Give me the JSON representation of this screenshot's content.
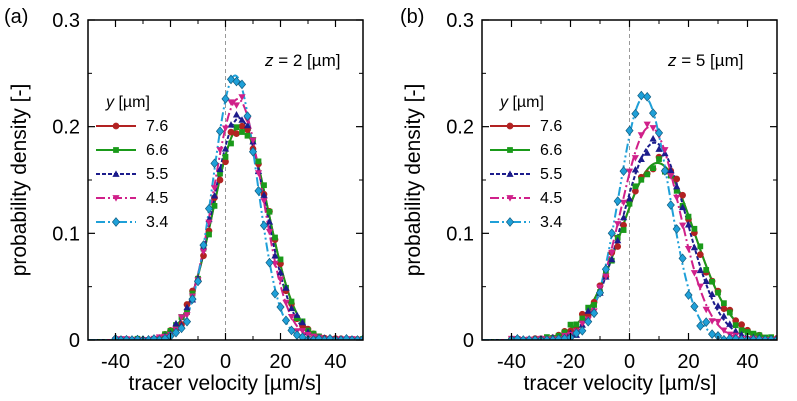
{
  "chart_data": [
    {
      "type": "line",
      "panel_label": "(a)",
      "annotation": {
        "var": "z",
        "text": " = 2 [µm]"
      },
      "xlabel": "tracer velocity [µm/s]",
      "ylabel": "probability density [-]",
      "xlim": [
        -50,
        50
      ],
      "ylim": [
        0,
        0.3
      ],
      "xticks": [
        -40,
        -20,
        0,
        20,
        40
      ],
      "xtick_labels": [
        "-40",
        "-20",
        "0",
        "20",
        "40"
      ],
      "yticks": [
        0,
        0.1,
        0.2,
        0.3
      ],
      "ytick_labels": [
        "0",
        "0.1",
        "0.2",
        "0.3"
      ],
      "legend": {
        "position": "middle-left",
        "title_var": "y",
        "title_unit": " [µm]"
      },
      "series": [
        {
          "name": "7.6",
          "color": "#b22222",
          "marker": "circle",
          "dash": "solid",
          "mu": 5.5,
          "sigma": 10.0,
          "amp": 0.201
        },
        {
          "name": "6.6",
          "color": "#1a9a1a",
          "marker": "square",
          "dash": "solid",
          "mu": 5.5,
          "sigma": 10.0,
          "amp": 0.201
        },
        {
          "name": "5.5",
          "color": "#1c1c8c",
          "marker": "triangle-up",
          "dash": "4,2",
          "mu": 5.0,
          "sigma": 9.6,
          "amp": 0.208
        },
        {
          "name": "4.5",
          "color": "#d0208a",
          "marker": "triangle-down",
          "dash": "9,3,2,3",
          "mu": 4.5,
          "sigma": 9.0,
          "amp": 0.226
        },
        {
          "name": "3.4",
          "color": "#1fa0d8",
          "marker": "diamond",
          "dash": "9,3,2,3,2,3",
          "mu": 3.5,
          "sigma": 8.0,
          "amp": 0.248
        }
      ]
    },
    {
      "type": "line",
      "panel_label": "(b)",
      "annotation": {
        "var": "z",
        "text": " = 5 [µm]"
      },
      "xlabel": "tracer velocity [µm/s]",
      "ylabel": "probability density [-]",
      "xlim": [
        -50,
        50
      ],
      "ylim": [
        0,
        0.3
      ],
      "xticks": [
        -40,
        -20,
        0,
        20,
        40
      ],
      "xtick_labels": [
        "-40",
        "-20",
        "0",
        "20",
        "40"
      ],
      "yticks": [
        0,
        0.1,
        0.2,
        0.3
      ],
      "ytick_labels": [
        "0",
        "0.1",
        "0.2",
        "0.3"
      ],
      "legend": {
        "position": "middle-left",
        "title_var": "y",
        "title_unit": " [µm]"
      },
      "series": [
        {
          "name": "7.6",
          "color": "#b22222",
          "marker": "circle",
          "dash": "solid",
          "mu": 9.5,
          "sigma": 12.5,
          "amp": 0.166
        },
        {
          "name": "6.6",
          "color": "#1a9a1a",
          "marker": "square",
          "dash": "solid",
          "mu": 9.5,
          "sigma": 12.5,
          "amp": 0.166
        },
        {
          "name": "5.5",
          "color": "#1c1c8c",
          "marker": "triangle-up",
          "dash": "4,2",
          "mu": 8.5,
          "sigma": 11.0,
          "amp": 0.185
        },
        {
          "name": "4.5",
          "color": "#d0208a",
          "marker": "triangle-down",
          "dash": "9,3,2,3",
          "mu": 7.0,
          "sigma": 10.0,
          "amp": 0.2
        },
        {
          "name": "3.4",
          "color": "#1fa0d8",
          "marker": "diamond",
          "dash": "9,3,2,3,2,3",
          "mu": 5.0,
          "sigma": 8.5,
          "amp": 0.228
        }
      ]
    }
  ]
}
